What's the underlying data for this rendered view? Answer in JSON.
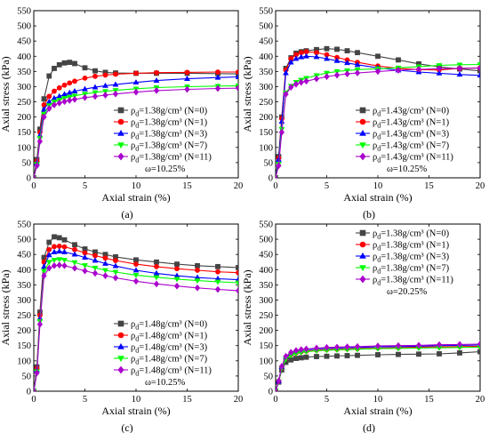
{
  "figure": {
    "xlabel": "Axial strain (%)",
    "ylabel": "Axial stress (kPa)"
  },
  "chart_data": [
    {
      "type": "line",
      "panel_label": "(a)",
      "xlabel": "Axial strain (%)",
      "ylabel": "Axial stress (kPa)",
      "xlim": [
        0,
        20
      ],
      "ylim": [
        0,
        550
      ],
      "x_ticks": [
        0,
        5,
        10,
        15,
        20
      ],
      "y_ticks": [
        0,
        50,
        100,
        150,
        200,
        250,
        300,
        350,
        400,
        450,
        500,
        550
      ],
      "legend_position": "lower-right",
      "annotation": "ω=10.25%",
      "series": [
        {
          "name": "ρd=1.38g/cm³ (N=0)",
          "color": "#444444",
          "marker": "square",
          "x": [
            0,
            0.3,
            0.6,
            1,
            1.5,
            2,
            2.5,
            3,
            3.5,
            4,
            5,
            6,
            7,
            8,
            10,
            12,
            15,
            18,
            20
          ],
          "y": [
            0,
            60,
            160,
            260,
            335,
            360,
            372,
            378,
            380,
            376,
            362,
            352,
            347,
            345,
            344,
            344,
            344,
            343,
            342
          ]
        },
        {
          "name": "ρd=1.38g/cm³ (N=1)",
          "color": "#ff0000",
          "marker": "circle",
          "x": [
            0,
            0.3,
            0.6,
            1,
            1.5,
            2,
            2.5,
            3,
            3.5,
            4,
            5,
            6,
            7,
            8,
            10,
            12,
            15,
            18,
            20
          ],
          "y": [
            0,
            55,
            150,
            240,
            268,
            285,
            296,
            305,
            312,
            318,
            328,
            334,
            338,
            341,
            344,
            346,
            347,
            348,
            348
          ]
        },
        {
          "name": "ρd=1.38g/cm³ (N=3)",
          "color": "#0000ff",
          "marker": "triangle-up",
          "x": [
            0,
            0.3,
            0.6,
            1,
            1.5,
            2,
            2.5,
            3,
            3.5,
            4,
            5,
            6,
            7,
            8,
            10,
            12,
            15,
            18,
            20
          ],
          "y": [
            0,
            50,
            140,
            225,
            250,
            262,
            268,
            275,
            280,
            285,
            292,
            298,
            303,
            307,
            314,
            320,
            326,
            330,
            332
          ]
        },
        {
          "name": "ρd=1.38g/cm³ (N=7)",
          "color": "#00ff00",
          "marker": "triangle-down",
          "x": [
            0,
            0.3,
            0.6,
            1,
            1.5,
            2,
            2.5,
            3,
            3.5,
            4,
            5,
            6,
            7,
            8,
            10,
            12,
            15,
            18,
            20
          ],
          "y": [
            0,
            45,
            130,
            210,
            238,
            250,
            256,
            262,
            266,
            270,
            276,
            281,
            285,
            288,
            293,
            297,
            300,
            302,
            303
          ]
        },
        {
          "name": "ρd=1.38g/cm³ (N=11)",
          "color": "#aa00cc",
          "marker": "diamond",
          "x": [
            0,
            0.3,
            0.6,
            1,
            1.5,
            2,
            2.5,
            3,
            3.5,
            4,
            5,
            6,
            7,
            8,
            10,
            12,
            15,
            18,
            20
          ],
          "y": [
            0,
            40,
            120,
            200,
            228,
            240,
            246,
            251,
            255,
            258,
            264,
            268,
            272,
            276,
            282,
            287,
            291,
            294,
            295
          ]
        }
      ]
    },
    {
      "type": "line",
      "panel_label": "(b)",
      "xlabel": "Axial strain (%)",
      "ylabel": "Axial stress (kPa)",
      "xlim": [
        0,
        20
      ],
      "ylim": [
        0,
        550
      ],
      "x_ticks": [
        0,
        5,
        10,
        15,
        20
      ],
      "y_ticks": [
        0,
        50,
        100,
        150,
        200,
        250,
        300,
        350,
        400,
        450,
        500,
        550
      ],
      "legend_position": "lower-right",
      "annotation": "ω=10.25%",
      "series": [
        {
          "name": "ρd=1.43g/cm³ (N=0)",
          "color": "#444444",
          "marker": "square",
          "x": [
            0,
            0.3,
            0.6,
            1,
            1.5,
            2,
            2.5,
            3,
            4,
            5,
            6,
            7,
            8,
            10,
            12,
            14,
            16,
            18,
            20
          ],
          "y": [
            0,
            70,
            200,
            360,
            395,
            410,
            415,
            418,
            422,
            425,
            423,
            418,
            412,
            400,
            388,
            375,
            365,
            358,
            352
          ]
        },
        {
          "name": "ρd=1.43g/cm³ (N=1)",
          "color": "#ff0000",
          "marker": "circle",
          "x": [
            0,
            0.3,
            0.6,
            1,
            1.5,
            2,
            2.5,
            3,
            4,
            5,
            6,
            7,
            8,
            10,
            12,
            14,
            16,
            18,
            20
          ],
          "y": [
            0,
            65,
            195,
            355,
            392,
            405,
            412,
            415,
            412,
            405,
            396,
            388,
            380,
            368,
            360,
            356,
            355,
            360,
            362
          ]
        },
        {
          "name": "ρd=1.43g/cm³ (N=3)",
          "color": "#0000ff",
          "marker": "triangle-up",
          "x": [
            0,
            0.3,
            0.6,
            1,
            1.5,
            2,
            2.5,
            3,
            4,
            5,
            6,
            7,
            8,
            10,
            12,
            14,
            16,
            18,
            20
          ],
          "y": [
            0,
            60,
            185,
            345,
            380,
            392,
            397,
            400,
            398,
            392,
            385,
            378,
            372,
            362,
            354,
            348,
            344,
            340,
            337
          ]
        },
        {
          "name": "ρd=1.43g/cm³ (N=7)",
          "color": "#00ff00",
          "marker": "triangle-down",
          "x": [
            0,
            0.3,
            0.6,
            1,
            1.5,
            2,
            2.5,
            3,
            4,
            5,
            6,
            7,
            8,
            10,
            12,
            14,
            16,
            18,
            20
          ],
          "y": [
            0,
            45,
            160,
            280,
            302,
            315,
            322,
            328,
            337,
            345,
            350,
            353,
            356,
            359,
            362,
            366,
            370,
            372,
            373
          ]
        },
        {
          "name": "ρd=1.43g/cm³ (N=11)",
          "color": "#aa00cc",
          "marker": "diamond",
          "x": [
            0,
            0.3,
            0.6,
            1,
            1.5,
            2,
            2.5,
            3,
            4,
            5,
            6,
            7,
            8,
            10,
            12,
            14,
            16,
            18,
            20
          ],
          "y": [
            0,
            40,
            150,
            275,
            298,
            308,
            314,
            318,
            326,
            333,
            338,
            342,
            345,
            350,
            354,
            357,
            359,
            360,
            361
          ]
        }
      ]
    },
    {
      "type": "line",
      "panel_label": "(c)",
      "xlabel": "Axial strain (%)",
      "ylabel": "Axial stress (kPa)",
      "xlim": [
        0,
        20
      ],
      "ylim": [
        0,
        550
      ],
      "x_ticks": [
        0,
        5,
        10,
        15,
        20
      ],
      "y_ticks": [
        0,
        50,
        100,
        150,
        200,
        250,
        300,
        350,
        400,
        450,
        500,
        550
      ],
      "legend_position": "lower-right",
      "annotation": "ω=10.25%",
      "series": [
        {
          "name": "ρd=1.48g/cm³ (N=0)",
          "color": "#444444",
          "marker": "square",
          "x": [
            0,
            0.3,
            0.6,
            1,
            1.5,
            2,
            2.5,
            3,
            4,
            5,
            6,
            7,
            8,
            10,
            12,
            14,
            16,
            18,
            20
          ],
          "y": [
            0,
            80,
            260,
            440,
            490,
            508,
            505,
            498,
            482,
            468,
            458,
            450,
            442,
            432,
            425,
            418,
            413,
            410,
            407
          ]
        },
        {
          "name": "ρd=1.48g/cm³ (N=1)",
          "color": "#ff0000",
          "marker": "circle",
          "x": [
            0,
            0.3,
            0.6,
            1,
            1.5,
            2,
            2.5,
            3,
            4,
            5,
            6,
            7,
            8,
            10,
            12,
            14,
            16,
            18,
            20
          ],
          "y": [
            0,
            75,
            250,
            425,
            466,
            476,
            477,
            475,
            466,
            455,
            446,
            438,
            430,
            418,
            410,
            403,
            398,
            393,
            390
          ]
        },
        {
          "name": "ρd=1.48g/cm³ (N=3)",
          "color": "#0000ff",
          "marker": "triangle-up",
          "x": [
            0,
            0.3,
            0.6,
            1,
            1.5,
            2,
            2.5,
            3,
            4,
            5,
            6,
            7,
            8,
            10,
            12,
            14,
            16,
            18,
            20
          ],
          "y": [
            0,
            70,
            240,
            410,
            448,
            458,
            460,
            458,
            450,
            440,
            430,
            420,
            412,
            398,
            388,
            380,
            374,
            370,
            367
          ]
        },
        {
          "name": "ρd=1.48g/cm³ (N=7)",
          "color": "#00ff00",
          "marker": "triangle-down",
          "x": [
            0,
            0.3,
            0.6,
            1,
            1.5,
            2,
            2.5,
            3,
            4,
            5,
            6,
            7,
            8,
            10,
            12,
            14,
            16,
            18,
            20
          ],
          "y": [
            0,
            65,
            230,
            395,
            425,
            432,
            434,
            432,
            424,
            414,
            406,
            398,
            392,
            382,
            375,
            369,
            364,
            360,
            357
          ]
        },
        {
          "name": "ρd=1.48g/cm³ (N=11)",
          "color": "#aa00cc",
          "marker": "diamond",
          "x": [
            0,
            0.3,
            0.6,
            1,
            1.5,
            2,
            2.5,
            3,
            4,
            5,
            6,
            7,
            8,
            10,
            12,
            14,
            16,
            18,
            20
          ],
          "y": [
            0,
            60,
            220,
            380,
            405,
            413,
            415,
            413,
            405,
            396,
            388,
            380,
            373,
            362,
            353,
            346,
            340,
            335,
            331
          ]
        }
      ]
    },
    {
      "type": "line",
      "panel_label": "(d)",
      "xlabel": "Axial strain (%)",
      "ylabel": "Axial stress (kPa)",
      "xlim": [
        0,
        20
      ],
      "ylim": [
        0,
        550
      ],
      "x_ticks": [
        0,
        5,
        10,
        15,
        20
      ],
      "y_ticks": [
        0,
        50,
        100,
        150,
        200,
        250,
        300,
        350,
        400,
        450,
        500,
        550
      ],
      "legend_position": "top-right",
      "annotation": "ω=20.25%",
      "series": [
        {
          "name": "ρd=1.38g/cm³ (N=0)",
          "color": "#444444",
          "marker": "square",
          "x": [
            0,
            0.3,
            0.6,
            1,
            1.5,
            2,
            2.5,
            3,
            4,
            5,
            6,
            7,
            8,
            10,
            12,
            14,
            16,
            18,
            20
          ],
          "y": [
            0,
            30,
            70,
            95,
            103,
            108,
            110,
            112,
            114,
            115,
            116,
            117,
            118,
            120,
            121,
            122,
            123,
            126,
            130
          ]
        },
        {
          "name": "ρd=1.38g/cm³ (N=1)",
          "color": "#ff0000",
          "marker": "circle",
          "x": [
            0,
            0.3,
            0.6,
            1,
            1.5,
            2,
            2.5,
            3,
            4,
            5,
            6,
            7,
            8,
            10,
            12,
            14,
            16,
            18,
            20
          ],
          "y": [
            0,
            32,
            78,
            108,
            120,
            126,
            130,
            132,
            135,
            137,
            138,
            139,
            140,
            142,
            143,
            145,
            146,
            147,
            148
          ]
        },
        {
          "name": "ρd=1.38g/cm³ (N=3)",
          "color": "#0000ff",
          "marker": "triangle-up",
          "x": [
            0,
            0.3,
            0.6,
            1,
            1.5,
            2,
            2.5,
            3,
            4,
            5,
            6,
            7,
            8,
            10,
            12,
            14,
            16,
            18,
            20
          ],
          "y": [
            0,
            33,
            80,
            112,
            125,
            131,
            134,
            136,
            139,
            141,
            142,
            143,
            144,
            146,
            147,
            148,
            150,
            151,
            152
          ]
        },
        {
          "name": "ρd=1.38g/cm³ (N=7)",
          "color": "#00ff00",
          "marker": "triangle-down",
          "x": [
            0,
            0.3,
            0.6,
            1,
            1.5,
            2,
            2.5,
            3,
            4,
            5,
            6,
            7,
            8,
            10,
            12,
            14,
            16,
            18,
            20
          ],
          "y": [
            0,
            31,
            76,
            106,
            118,
            124,
            128,
            130,
            133,
            135,
            136,
            137,
            138,
            140,
            141,
            142,
            143,
            144,
            145
          ]
        },
        {
          "name": "ρd=1.38g/cm³ (N=11)",
          "color": "#aa00cc",
          "marker": "diamond",
          "x": [
            0,
            0.3,
            0.6,
            1,
            1.5,
            2,
            2.5,
            3,
            4,
            5,
            6,
            7,
            8,
            10,
            12,
            14,
            16,
            18,
            20
          ],
          "y": [
            0,
            34,
            82,
            115,
            128,
            134,
            137,
            139,
            142,
            144,
            145,
            146,
            147,
            149,
            150,
            151,
            153,
            154,
            155
          ]
        }
      ]
    }
  ]
}
